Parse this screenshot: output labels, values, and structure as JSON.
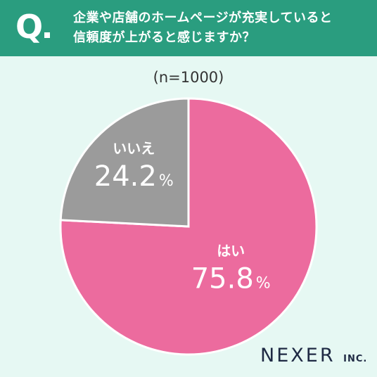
{
  "header": {
    "q_mark": "Q",
    "line1": "企業や店舗のホームページが充実していると",
    "line2": "信頼度が上がると感じますか？"
  },
  "sample_label": "(n=1000)",
  "chart_data": {
    "type": "pie",
    "slices": [
      {
        "label": "はい",
        "value": 75.8,
        "display": "75.8",
        "unit": "%",
        "color": "#ec6b9e"
      },
      {
        "label": "いいえ",
        "value": 24.2,
        "display": "24.2",
        "unit": "%",
        "color": "#9b9b9b"
      }
    ],
    "start": "12 o'clock",
    "direction": "clockwise",
    "separator_color": "#ffffff"
  },
  "logo": {
    "name": "NEXER",
    "suffix": "INC."
  }
}
